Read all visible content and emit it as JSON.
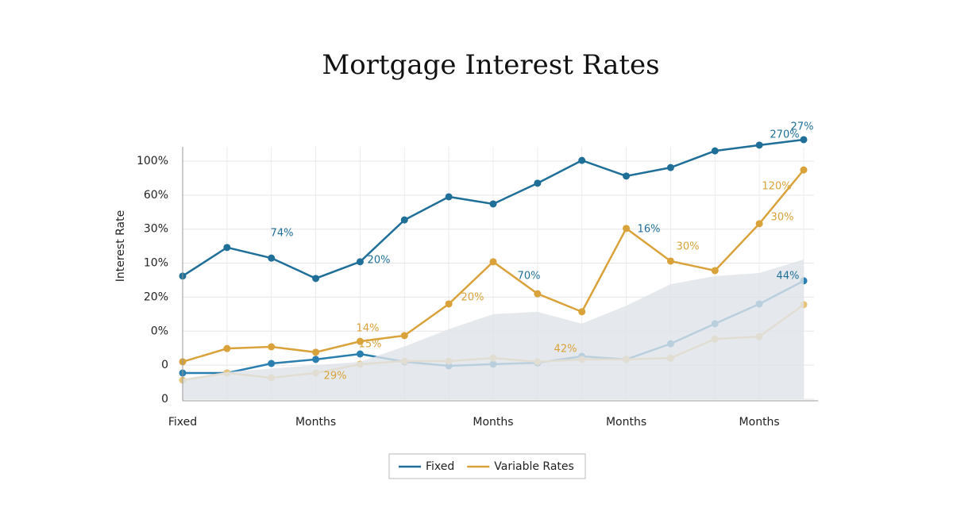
{
  "chart_data": {
    "type": "line",
    "title": "Mortgage Interest Rates",
    "y_label": "Interest Rate",
    "categories": [
      "Fixed",
      null,
      null,
      "Months",
      null,
      null,
      null,
      "Months",
      null,
      null,
      "Months",
      null,
      null,
      "Months",
      null
    ],
    "y_categories": [
      "0",
      "0",
      "0%",
      "20%",
      "10%",
      "30%",
      "60%",
      "100%"
    ],
    "ylim": [
      0,
      7.8
    ],
    "grid": true,
    "series": [
      {
        "name": "Fixed",
        "color": "#1f6f99",
        "values": [
          3.62,
          4.46,
          4.15,
          3.55,
          4.04,
          5.27,
          5.95,
          5.74,
          6.35,
          7.02,
          6.56,
          6.81,
          7.3,
          7.47,
          7.63
        ]
      },
      {
        "color": "#2a7fb0",
        "values": [
          0.77,
          0.77,
          1.05,
          1.17,
          1.33,
          1.1,
          0.98,
          1.03,
          1.07,
          1.26,
          1.17,
          1.63,
          2.22,
          2.8,
          3.48
        ]
      },
      {
        "name": "Variable Rates",
        "color": "#d9a23a",
        "values": [
          1.1,
          1.49,
          1.54,
          1.38,
          1.7,
          1.87,
          2.8,
          4.04,
          3.1,
          2.57,
          5.02,
          4.06,
          3.78,
          5.16,
          6.74
        ]
      },
      {
        "color": "#e8c47a",
        "values": [
          0.56,
          0.77,
          0.63,
          0.77,
          1.03,
          1.12,
          1.12,
          1.21,
          1.1,
          1.17,
          1.17,
          1.21,
          1.77,
          1.84,
          2.78
        ]
      },
      {
        "color": "#dfe3e8",
        "area": true,
        "values": [
          0.6,
          0.8,
          0.9,
          1.0,
          1.1,
          1.55,
          2.06,
          2.5,
          2.57,
          2.22,
          2.75,
          3.38,
          3.62,
          3.71,
          4.11
        ]
      }
    ],
    "annotations": [
      {
        "text": "74%",
        "color": "#1f6f99"
      },
      {
        "text": "20%",
        "color": "#1f6f99"
      },
      {
        "text": "20%",
        "color": "#d9a23a"
      },
      {
        "text": "70%",
        "color": "#1f6f99"
      },
      {
        "text": "14%",
        "color": "#d9a23a"
      },
      {
        "text": "15%",
        "color": "#d9a23a"
      },
      {
        "text": "29%",
        "color": "#d9a23a"
      },
      {
        "text": "42%",
        "color": "#d9a23a"
      },
      {
        "text": "16%",
        "color": "#1f6f99"
      },
      {
        "text": "30%",
        "color": "#d9a23a"
      },
      {
        "text": "120%",
        "color": "#d9a23a"
      },
      {
        "text": "30%",
        "color": "#d9a23a"
      },
      {
        "text": "44%",
        "color": "#1f6f99"
      },
      {
        "text": "270%",
        "color": "#1f6f99"
      },
      {
        "text": "27%",
        "color": "#1f6f99"
      }
    ]
  }
}
